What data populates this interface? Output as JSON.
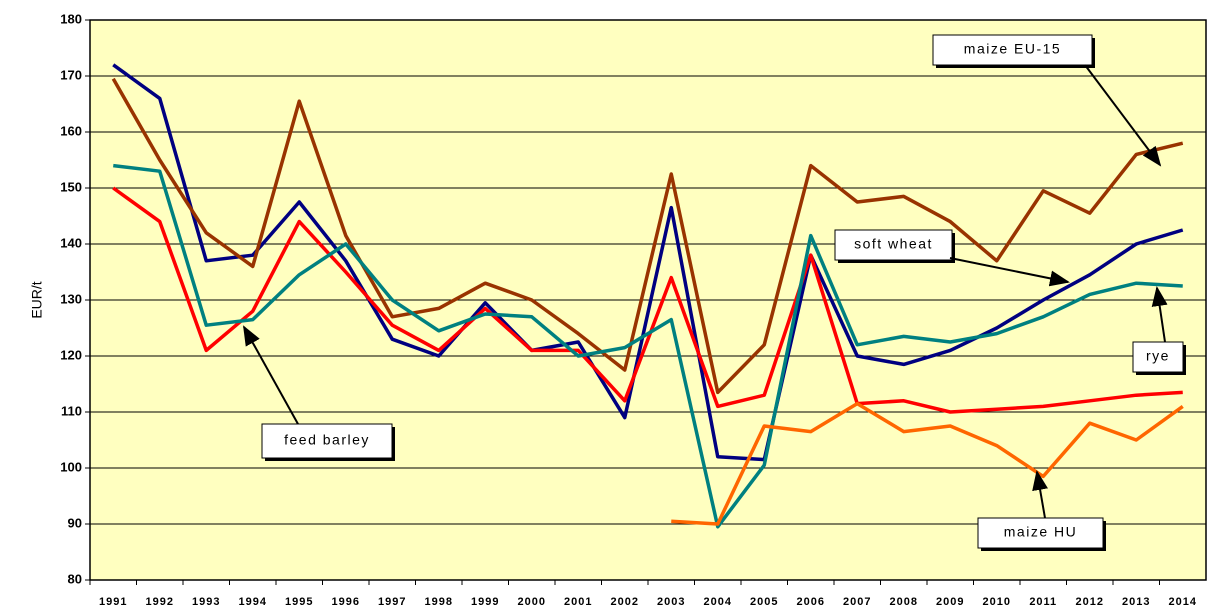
{
  "chart_data": {
    "type": "line",
    "y_label": "EUR/t",
    "categories": [
      "1991",
      "1992",
      "1993",
      "1994",
      "1995",
      "1996",
      "1997",
      "1998",
      "1999",
      "2000",
      "2001",
      "2002",
      "2003",
      "2004",
      "2005",
      "2006",
      "2007",
      "2008",
      "2009",
      "2010",
      "2011",
      "2012",
      "2013",
      "2014"
    ],
    "series": [
      {
        "name": "soft wheat",
        "color": "#000080",
        "values": [
          172,
          166,
          137,
          138,
          147.5,
          137,
          123,
          120,
          129.5,
          121,
          122.5,
          109,
          146.5,
          102,
          101.5,
          138,
          120,
          118.5,
          121,
          125,
          130,
          134.5,
          140,
          142.5
        ]
      },
      {
        "name": "feed barley",
        "color": "#ff0000",
        "values": [
          150,
          144,
          121,
          128,
          144,
          135,
          125.5,
          121,
          128.5,
          121,
          121,
          112,
          134,
          111,
          113,
          138,
          111.5,
          112,
          110,
          110.5,
          111,
          112,
          113,
          113.5
        ]
      },
      {
        "name": "maize EU-15",
        "color": "#993300",
        "values": [
          169.5,
          155,
          142,
          136,
          165.5,
          141.5,
          127,
          128.5,
          133,
          130,
          124,
          117.5,
          152.5,
          113.5,
          122,
          154,
          147.5,
          148.5,
          144,
          137,
          149.5,
          145.5,
          156,
          158
        ]
      },
      {
        "name": "rye",
        "color": "#008080",
        "values": [
          154,
          153,
          125.5,
          126.5,
          134.5,
          140,
          130,
          124.5,
          127.5,
          127,
          120,
          121.5,
          126.5,
          89.5,
          100.5,
          141.5,
          122,
          123.5,
          122.5,
          124,
          127,
          131,
          133,
          132.5
        ]
      },
      {
        "name": "maize HU",
        "color": "#ff6600",
        "values": [
          null,
          null,
          null,
          null,
          null,
          null,
          null,
          null,
          null,
          null,
          null,
          null,
          90.5,
          90,
          107.5,
          106.5,
          111.5,
          106.5,
          107.5,
          104,
          98.5,
          108,
          105,
          111
        ]
      }
    ],
    "ylim": [
      80,
      180
    ],
    "yticks": [
      80,
      90,
      100,
      110,
      120,
      130,
      140,
      150,
      160,
      170,
      180
    ],
    "grid": true,
    "background": "#ffffc0"
  }
}
